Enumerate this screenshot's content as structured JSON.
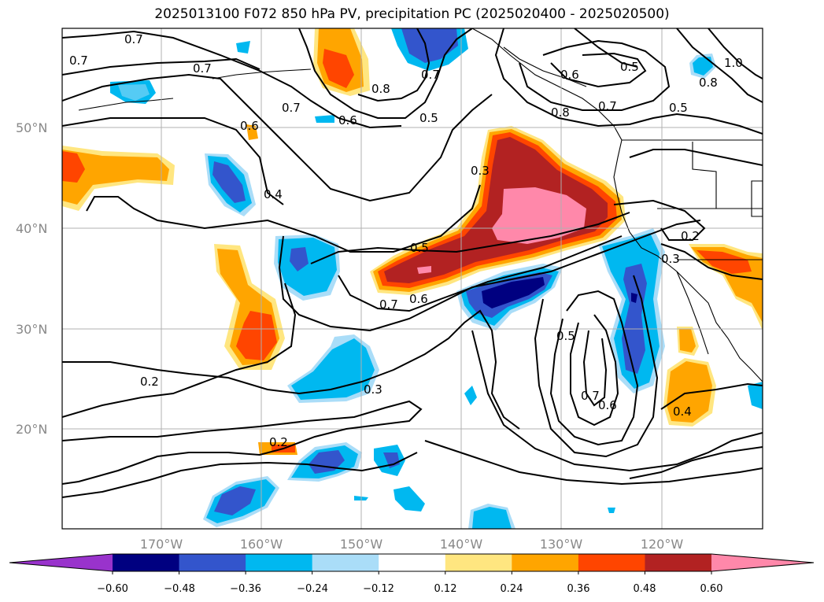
{
  "title": "2025013100 F072 850 hPa PV, precipitation PC (2025020400 - 2025020500)",
  "map": {
    "lat_labels": [
      "50°N",
      "40°N",
      "30°N",
      "20°N"
    ],
    "lon_labels": [
      "170°W",
      "160°W",
      "150°W",
      "140°W",
      "130°W",
      "120°W"
    ],
    "contour_labels": [
      "0.7",
      "0.7",
      "0.7",
      "0.7",
      "0.6",
      "0.6",
      "0.8",
      "0.7",
      "0.5",
      "0.6",
      "0.5",
      "0.8",
      "0.7",
      "0.5",
      "0.8",
      "1.0",
      "0.4",
      "0.3",
      "0.5",
      "0.7",
      "0.6",
      "0.2",
      "0.3",
      "0.2",
      "0.3",
      "0.2",
      "0.5",
      "0.7",
      "0.6",
      "0.4"
    ],
    "colors": {
      "gridline": "#b0b0b0",
      "contour": "#000000",
      "coast": "#000000"
    }
  },
  "colorbar": {
    "ticks": [
      "−0.60",
      "−0.48",
      "−0.36",
      "−0.24",
      "−0.12",
      "0.12",
      "0.24",
      "0.36",
      "0.48",
      "0.60"
    ],
    "colors": [
      "#9933cc",
      "#000080",
      "#3355cc",
      "#00b8f0",
      "#aaddf8",
      "#ffffff",
      "#ffe680",
      "#ffa500",
      "#ff4500",
      "#b22222",
      "#ff88aa"
    ],
    "extend": "both"
  }
}
